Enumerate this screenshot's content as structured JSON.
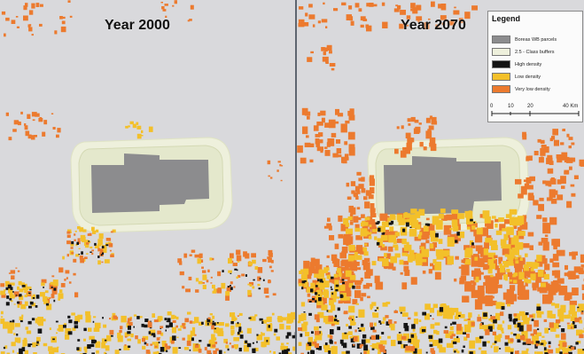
{
  "maps": {
    "left_title": "Year 2000",
    "right_title": "Year 2070"
  },
  "legend": {
    "title": "Legend",
    "items": [
      {
        "label": "Boreas WB parcels",
        "color": "#8c8c8e",
        "icon": "building-swatch"
      },
      {
        "label": "2.5 - Class buffers",
        "color": "#eef0dc",
        "icon": "buffer-swatch"
      },
      {
        "label": "High density",
        "color": "#141414",
        "icon": "high-density-swatch"
      },
      {
        "label": "Low density",
        "color": "#f3c02a",
        "icon": "low-density-swatch"
      },
      {
        "label": "Very low density",
        "color": "#ec7a2e",
        "icon": "very-low-density-swatch"
      }
    ],
    "scale_ticks": [
      "0",
      "10",
      "20",
      "40 Km"
    ]
  },
  "colors": {
    "background": "#d9d9dc",
    "building": "#8c8c8e",
    "buffer": "#eef0dc",
    "high": "#141414",
    "low": "#f3c02a",
    "very_low": "#ec7a2e"
  }
}
